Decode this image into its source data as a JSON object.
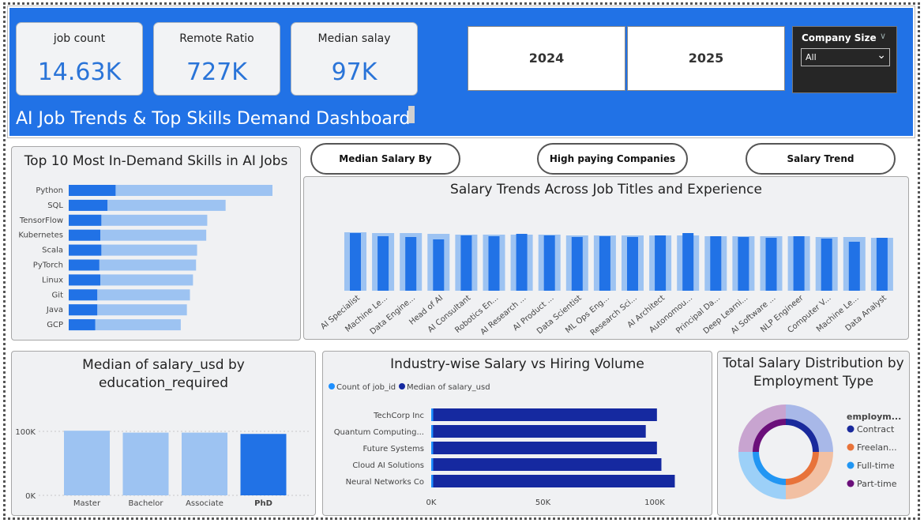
{
  "header": {
    "title": "AI Job Trends & Top Skills Demand Dashboard",
    "kpis": [
      {
        "label": "job count",
        "value": "14.63K"
      },
      {
        "label": "Remote Ratio",
        "value": "727K"
      },
      {
        "label": "Median salay",
        "value": "97K"
      }
    ],
    "years": [
      "2024",
      "2025"
    ],
    "slicer": {
      "title": "Company Size",
      "value": "All"
    },
    "colors": {
      "banner": "#2172e6",
      "kpi_value": "#2a74d8"
    }
  },
  "nav": {
    "median_salary_by_experience": "Median Salary By Experience",
    "high_paying_companies": "High paying Companies",
    "salary_trend": "Salary Trend"
  },
  "chart_data": [
    {
      "id": "skills",
      "type": "bar",
      "orientation": "horizontal",
      "title": "Top 10 Most In-Demand Skills in AI Jobs",
      "categories": [
        "Python",
        "SQL",
        "TensorFlow",
        "Kubernetes",
        "Scala",
        "PyTorch",
        "Linux",
        "Git",
        "Java",
        "GCP"
      ],
      "series": [
        {
          "values": [
            100,
            77,
            68,
            67.5,
            63,
            62.5,
            61,
            59.5,
            58,
            55
          ]
        },
        {
          "values": [
            23,
            19,
            16,
            15.5,
            16,
            15,
            15.5,
            14,
            14,
            13
          ]
        }
      ],
      "xlim": [
        0,
        100
      ],
      "colors": [
        "#9dc3f2",
        "#2172e6"
      ]
    },
    {
      "id": "salary_trends",
      "type": "bar",
      "title": "Salary Trends Across Job Titles and Experience",
      "categories": [
        "AI Specialist",
        "Machine Le...",
        "Data Engine...",
        "Head of AI",
        "AI Consultant",
        "Robotics En...",
        "AI Research ...",
        "AI Product ...",
        "Data Scientist",
        "ML Ops Eng...",
        "Research Sci...",
        "AI Architect",
        "Autonomou...",
        "Principal Da...",
        "Deep Learni...",
        "AI Software ...",
        "NLP Engineer",
        "Computer V...",
        "Machine Le...",
        "Data Analyst"
      ],
      "series": [
        {
          "values": [
            74,
            73,
            73,
            72,
            71,
            71,
            71,
            71,
            70,
            70,
            70,
            70,
            70,
            69,
            69,
            69,
            69,
            68,
            68,
            67
          ]
        },
        {
          "values": [
            73,
            69,
            68,
            65,
            70,
            69,
            72,
            70,
            68,
            69,
            68,
            70,
            73,
            69,
            68,
            67,
            69,
            66,
            62,
            67
          ]
        }
      ],
      "ylim": [
        0,
        100
      ],
      "colors": [
        "#9dc3f2",
        "#2172e6"
      ]
    },
    {
      "id": "education",
      "type": "bar",
      "title": "Median of salary_usd by education_required",
      "title_lines": [
        "Median of salary_usd by",
        "education_required"
      ],
      "categories": [
        "Master",
        "Bachelor",
        "Associate",
        "PhD"
      ],
      "values": [
        101000,
        98000,
        98000,
        96000
      ],
      "ylim": [
        0,
        100000
      ],
      "yticks": [
        "0K",
        "100K"
      ],
      "highlight": "PhD",
      "colors": [
        "#9dc3f2",
        "#2172e6"
      ]
    },
    {
      "id": "industry",
      "type": "bar",
      "orientation": "horizontal",
      "title": "Industry-wise Salary vs Hiring Volume",
      "categories": [
        "TechCorp Inc",
        "Quantum Computing...",
        "Future Systems",
        "Cloud AI Solutions",
        "Neural Networks Co"
      ],
      "series": [
        {
          "name": "Count of job_id",
          "values": [
            900,
            850,
            870,
            890,
            880
          ]
        },
        {
          "name": "Median of salary_usd",
          "values": [
            101000,
            96000,
            101000,
            103000,
            109000
          ]
        }
      ],
      "xlim": [
        0,
        115000
      ],
      "xticks": [
        "0K",
        "50K",
        "100K"
      ],
      "colors": [
        "#1e90ff",
        "#1529a0"
      ]
    },
    {
      "id": "employment",
      "type": "pie",
      "title": "Total Salary Distribution by Employment Type",
      "title_lines": [
        "Total Salary Distribution by",
        "Employment Type"
      ],
      "legend_title": "employm...",
      "categories": [
        "Contract",
        "Freelan...",
        "Full-time",
        "Part-time"
      ],
      "values": [
        25,
        25,
        25,
        25
      ],
      "colors": [
        "#1a2a9c",
        "#e8733a",
        "#2196f3",
        "#6b0f7a"
      ]
    }
  ]
}
